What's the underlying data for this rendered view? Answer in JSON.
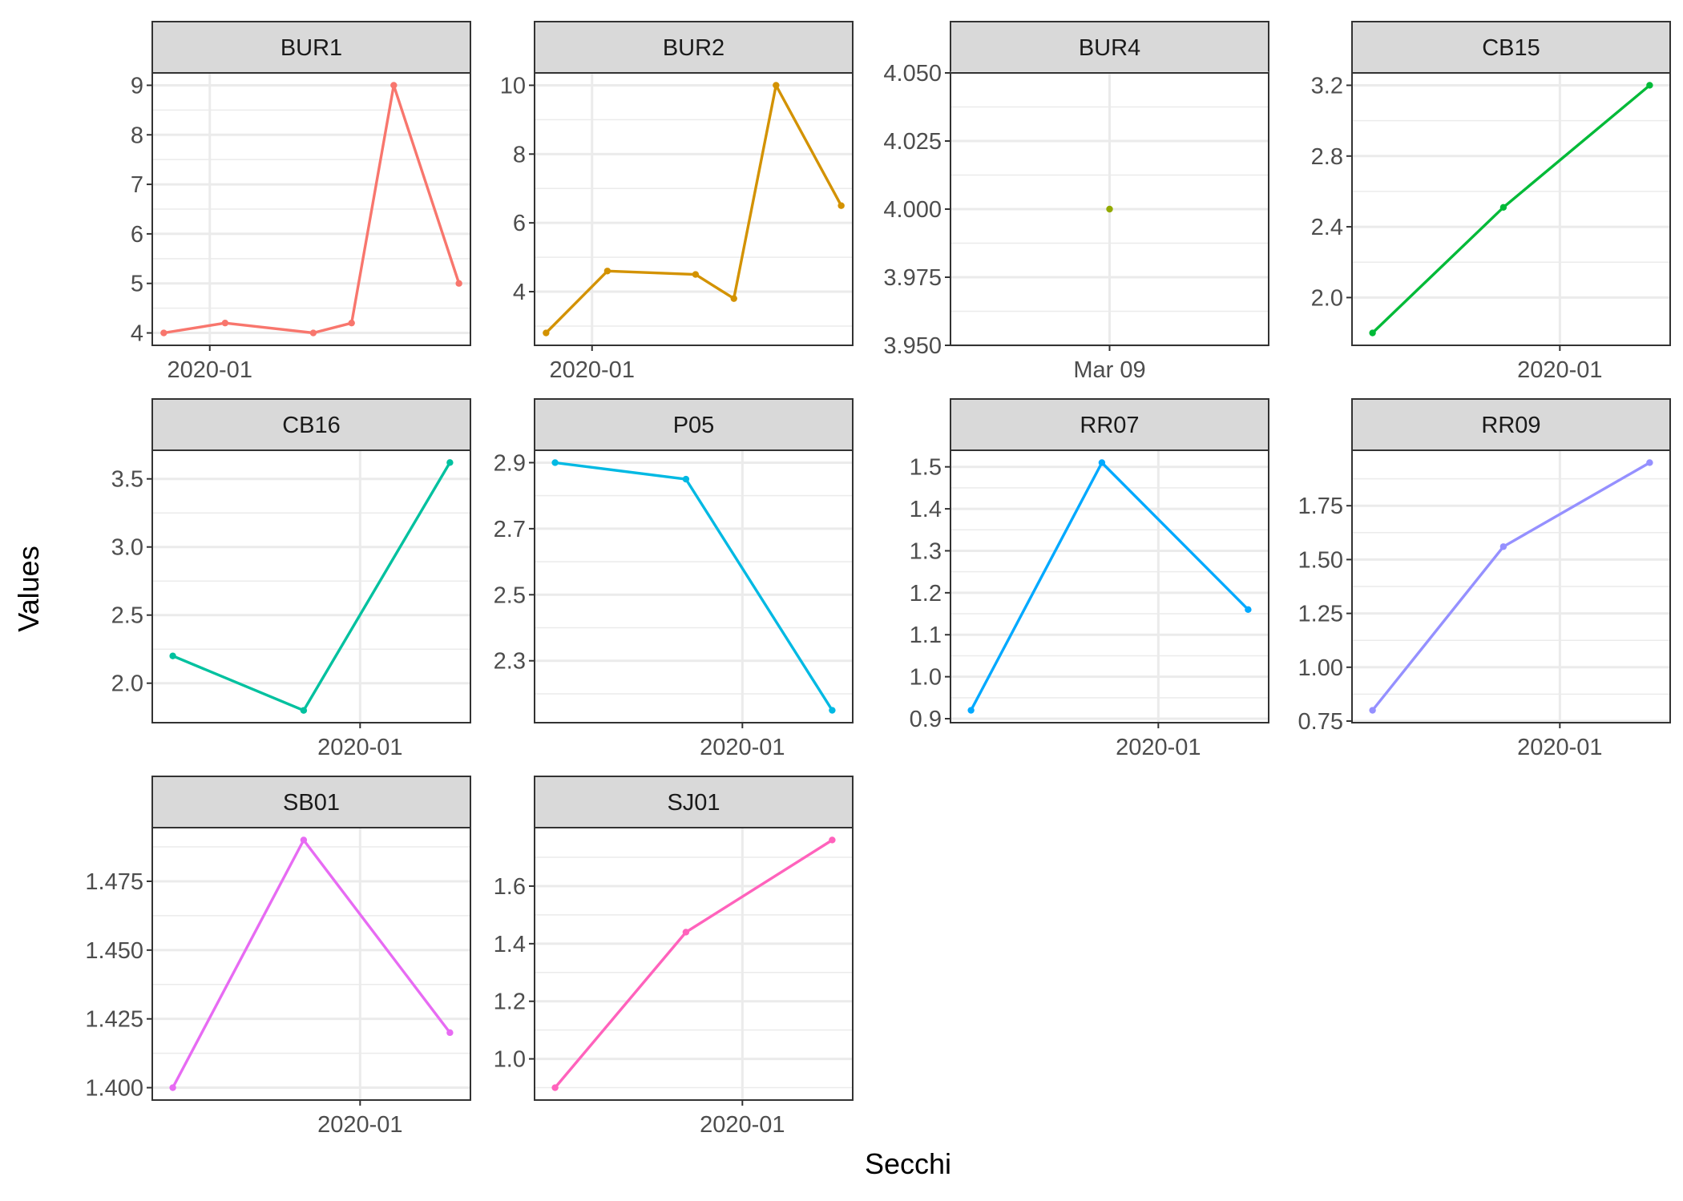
{
  "figure": {
    "xlabel": "Secchi",
    "ylabel": "Values"
  },
  "chart_data": [
    {
      "type": "line",
      "panel": "BUR1",
      "color": "#F8766D",
      "x": [
        "2019-12-20",
        "2020-01-05",
        "2020-01-28",
        "2020-02-07",
        "2020-02-18",
        "2020-03-06"
      ],
      "y": [
        4.0,
        4.2,
        4.0,
        4.2,
        9.0,
        5.0
      ],
      "xlim": [
        "2019-12-17",
        "2020-03-09"
      ],
      "ylim": [
        3.75,
        9.25
      ],
      "xticks": [
        {
          "at": "2020-01-01",
          "label": "2020-01"
        }
      ],
      "yticks": [
        4,
        5,
        6,
        7,
        8,
        9
      ],
      "yminor": [
        4.5,
        5.5,
        6.5,
        7.5,
        8.5
      ]
    },
    {
      "type": "line",
      "panel": "BUR2",
      "color": "#D39200",
      "x": [
        "2019-12-20",
        "2020-01-05",
        "2020-01-28",
        "2020-02-07",
        "2020-02-18",
        "2020-03-06"
      ],
      "y": [
        2.8,
        4.6,
        4.5,
        3.8,
        10.0,
        6.5
      ],
      "xlim": [
        "2019-12-17",
        "2020-03-09"
      ],
      "ylim": [
        2.44,
        10.36
      ],
      "xticks": [
        {
          "at": "2020-01-01",
          "label": "2020-01"
        }
      ],
      "yticks": [
        4,
        6,
        8,
        10
      ],
      "yminor": [
        3,
        5,
        7,
        9
      ]
    },
    {
      "type": "scatter",
      "panel": "BUR4",
      "color": "#93AA00",
      "x": [
        "2020-03-09"
      ],
      "y": [
        4.0
      ],
      "xlim": [
        "2020-03-08",
        "2020-03-10"
      ],
      "ylim": [
        3.95,
        4.05
      ],
      "xticks": [
        {
          "at": "2020-03-09",
          "label": "Mar 09"
        }
      ],
      "yticks": [
        3.95,
        3.975,
        4.0,
        4.025,
        4.05
      ],
      "ytick_labels": [
        "3.950",
        "3.975",
        "4.000",
        "4.025",
        "4.050"
      ],
      "yminor": [
        3.9625,
        3.9875,
        4.0125,
        4.0375
      ]
    },
    {
      "type": "line",
      "panel": "CB15",
      "color": "#00BA38",
      "x": [
        "2019-10-20",
        "2019-12-10",
        "2020-02-05"
      ],
      "y": [
        1.8,
        2.51,
        3.2
      ],
      "xlim": [
        "2019-10-12",
        "2020-02-13"
      ],
      "ylim": [
        1.73,
        3.27
      ],
      "xticks": [
        {
          "at": "2020-01-01",
          "label": "2020-01"
        }
      ],
      "yticks": [
        2.0,
        2.4,
        2.8,
        3.2
      ],
      "ytick_labels": [
        "2.0",
        "2.4",
        "2.8",
        "3.2"
      ],
      "yminor": [
        2.2,
        2.6,
        3.0
      ]
    },
    {
      "type": "line",
      "panel": "CB16",
      "color": "#00C19F",
      "x": [
        "2019-10-20",
        "2019-12-10",
        "2020-02-05"
      ],
      "y": [
        2.2,
        1.8,
        3.62
      ],
      "xlim": [
        "2019-10-12",
        "2020-02-13"
      ],
      "ylim": [
        1.71,
        3.71
      ],
      "xticks": [
        {
          "at": "2020-01-01",
          "label": "2020-01"
        }
      ],
      "yticks": [
        2.0,
        2.5,
        3.0,
        3.5
      ],
      "ytick_labels": [
        "2.0",
        "2.5",
        "3.0",
        "3.5"
      ],
      "yminor": [
        2.25,
        2.75,
        3.25
      ]
    },
    {
      "type": "line",
      "panel": "P05",
      "color": "#00B9E3",
      "x": [
        "2019-10-20",
        "2019-12-10",
        "2020-02-05"
      ],
      "y": [
        2.9,
        2.85,
        2.15
      ],
      "xlim": [
        "2019-10-12",
        "2020-02-13"
      ],
      "ylim": [
        2.1125,
        2.9375
      ],
      "xticks": [
        {
          "at": "2020-01-01",
          "label": "2020-01"
        }
      ],
      "yticks": [
        2.3,
        2.5,
        2.7,
        2.9
      ],
      "ytick_labels": [
        "2.3",
        "2.5",
        "2.7",
        "2.9"
      ],
      "yminor": [
        2.2,
        2.4,
        2.6,
        2.8
      ]
    },
    {
      "type": "line",
      "panel": "RR07",
      "color": "#00A9FF",
      "x": [
        "2019-10-20",
        "2019-12-10",
        "2020-02-05"
      ],
      "y": [
        0.92,
        1.51,
        1.16
      ],
      "xlim": [
        "2019-10-12",
        "2020-02-13"
      ],
      "ylim": [
        0.8905,
        1.5395
      ],
      "xticks": [
        {
          "at": "2020-01-01",
          "label": "2020-01"
        }
      ],
      "yticks": [
        0.9,
        1.0,
        1.1,
        1.2,
        1.3,
        1.4,
        1.5
      ],
      "ytick_labels": [
        "0.9",
        "1.0",
        "1.1",
        "1.2",
        "1.3",
        "1.4",
        "1.5"
      ],
      "yminor": [
        0.95,
        1.05,
        1.15,
        1.25,
        1.35,
        1.45
      ]
    },
    {
      "type": "line",
      "panel": "RR09",
      "color": "#9590FF",
      "x": [
        "2019-10-20",
        "2019-12-10",
        "2020-02-05"
      ],
      "y": [
        0.8,
        1.56,
        1.95
      ],
      "xlim": [
        "2019-10-12",
        "2020-02-13"
      ],
      "ylim": [
        0.7425,
        2.0075
      ],
      "xticks": [
        {
          "at": "2020-01-01",
          "label": "2020-01"
        }
      ],
      "yticks": [
        0.75,
        1.0,
        1.25,
        1.5,
        1.75
      ],
      "ytick_labels": [
        "0.75",
        "1.00",
        "1.25",
        "1.50",
        "1.75"
      ],
      "yminor": [
        0.875,
        1.125,
        1.375,
        1.625,
        1.875
      ]
    },
    {
      "type": "line",
      "panel": "SB01",
      "color": "#E76BF3",
      "x": [
        "2019-10-20",
        "2019-12-10",
        "2020-02-05"
      ],
      "y": [
        1.4,
        1.49,
        1.42
      ],
      "xlim": [
        "2019-10-12",
        "2020-02-13"
      ],
      "ylim": [
        1.3955,
        1.4945
      ],
      "xticks": [
        {
          "at": "2020-01-01",
          "label": "2020-01"
        }
      ],
      "yticks": [
        1.4,
        1.425,
        1.45,
        1.475
      ],
      "ytick_labels": [
        "1.400",
        "1.425",
        "1.450",
        "1.475"
      ],
      "yminor": [
        1.4125,
        1.4375,
        1.4625,
        1.4875
      ]
    },
    {
      "type": "line",
      "panel": "SJ01",
      "color": "#FF62BC",
      "x": [
        "2019-10-20",
        "2019-12-10",
        "2020-02-05"
      ],
      "y": [
        0.9,
        1.44,
        1.76
      ],
      "xlim": [
        "2019-10-12",
        "2020-02-13"
      ],
      "ylim": [
        0.857,
        1.803
      ],
      "xticks": [
        {
          "at": "2020-01-01",
          "label": "2020-01"
        }
      ],
      "yticks": [
        1.0,
        1.2,
        1.4,
        1.6
      ],
      "ytick_labels": [
        "1.0",
        "1.2",
        "1.4",
        "1.6"
      ],
      "yminor": [
        0.9,
        1.1,
        1.3,
        1.5,
        1.7
      ]
    }
  ]
}
